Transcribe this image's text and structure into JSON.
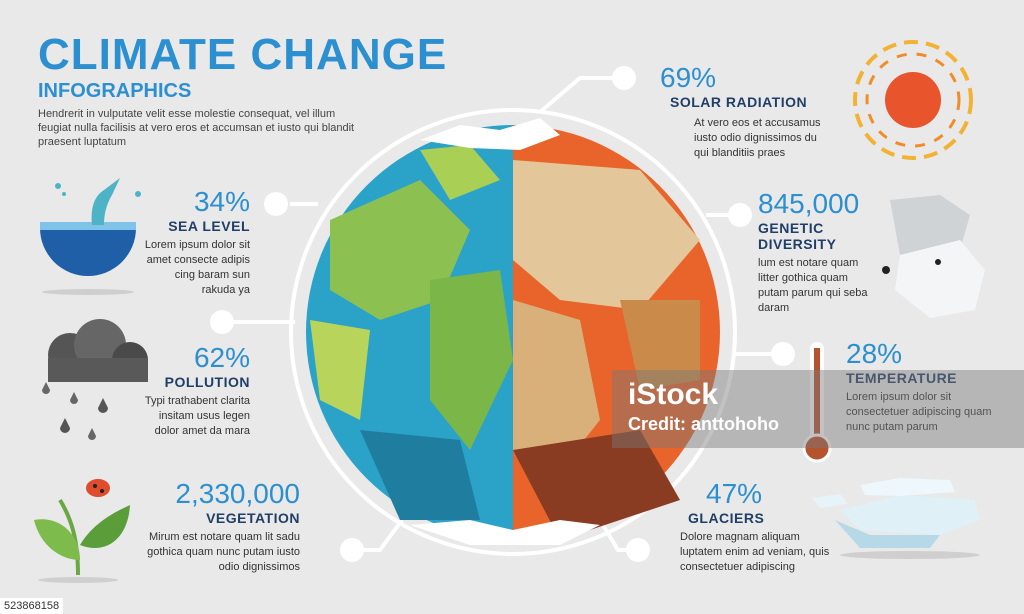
{
  "header": {
    "title": "CLIMATE CHANGE",
    "subtitle": "INFOGRAPHICS",
    "intro": "Hendrerit in vulputate velit esse molestie consequat, vel illum feugiat nulla facilisis at vero eros et accumsan et iusto qui blandit praesent luptatum"
  },
  "left": [
    {
      "value": "34%",
      "label": "SEA LEVEL",
      "desc": "Lorem ipsum dolor sit amet consecte adipis cing baram sun rakuda ya",
      "icon": "whale-icon"
    },
    {
      "value": "62%",
      "label": "POLLUTION",
      "desc": "Typi trathabent clarita insitam usus legen dolor amet da mara",
      "icon": "cloud-rain-icon"
    },
    {
      "value": "2,330,000",
      "label": "VEGETATION",
      "desc": "Mirum est notare quam lit sadu gothica quam nunc putam iusto odio dignissimos",
      "icon": "leaf-ladybug-icon"
    }
  ],
  "right": [
    {
      "value": "69%",
      "label": "SOLAR RADIATION",
      "desc": "At vero eos et accusamus iusto odio dignissimos du qui blanditiis praes",
      "icon": "sun-icon"
    },
    {
      "value": "845,000",
      "label": "GENETIC DIVERSITY",
      "desc": "lum est notare quam litter gothica quam putam parum qui seba daram",
      "icon": "polar-bear-icon"
    },
    {
      "value": "28%",
      "label": "TEMPERATURE",
      "desc": "Lorem ipsum dolor sit consectetuer adipiscing quam nunc putam parum",
      "icon": "thermometer-icon"
    },
    {
      "value": "47%",
      "label": "GLACIERS",
      "desc": "Dolore magnam aliquam luptatem enim ad veniam, quis consectetuer adipiscing",
      "icon": "glacier-icon"
    }
  ],
  "watermark": {
    "brand": "iStock",
    "credit": "Credit: anttohoho"
  },
  "footer": {
    "id": "523868158"
  },
  "colors": {
    "accent": "#2c8fd0",
    "label": "#1f3f66",
    "ocean": "#2ba3c9",
    "land": "#8cc152",
    "hot": "#e8642b"
  }
}
